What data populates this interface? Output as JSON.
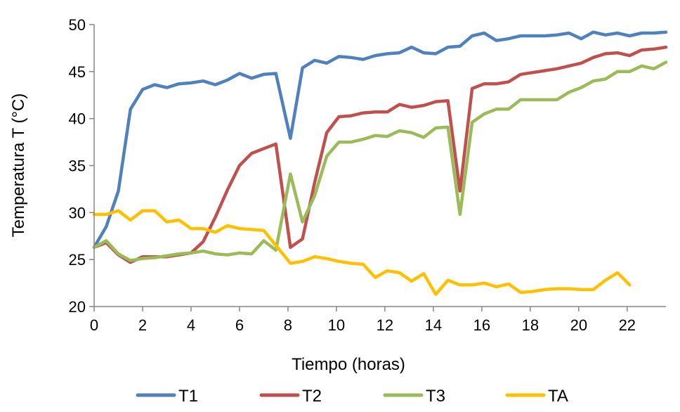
{
  "chart_data": {
    "type": "line",
    "title": "",
    "xlabel": "Tiempo (horas)",
    "ylabel": "Temperatura T (°C)",
    "xlim": [
      0,
      23.6
    ],
    "ylim": [
      20,
      50
    ],
    "xticks": [
      0,
      2,
      4,
      6,
      8,
      10,
      12,
      14,
      16,
      18,
      20,
      22
    ],
    "yticks": [
      20,
      25,
      30,
      35,
      40,
      45,
      50
    ],
    "grid": false,
    "legend_position": "bottom",
    "series": [
      {
        "name": "T1",
        "color": "#4F81BD",
        "x": [
          0,
          0.5,
          1,
          1.5,
          2,
          2.5,
          3,
          3.5,
          4,
          4.5,
          5,
          5.5,
          6,
          6.5,
          7,
          7.5,
          8.1,
          8.6,
          9.1,
          9.6,
          10.1,
          10.6,
          11.1,
          11.6,
          12.1,
          12.6,
          13.1,
          13.6,
          14.1,
          14.6,
          15.1,
          15.6,
          16.1,
          16.6,
          17.1,
          17.6,
          18.1,
          18.6,
          19.1,
          19.6,
          20.1,
          20.6,
          21.1,
          21.6,
          22.1,
          22.6,
          23.1,
          23.6
        ],
        "values": [
          26.3,
          28.5,
          32.3,
          41.0,
          43.1,
          43.6,
          43.3,
          43.7,
          43.8,
          44.0,
          43.6,
          44.1,
          44.8,
          44.3,
          44.7,
          44.8,
          37.9,
          45.4,
          46.2,
          45.9,
          46.6,
          46.5,
          46.3,
          46.7,
          46.9,
          47.0,
          47.6,
          47.0,
          46.9,
          47.6,
          47.7,
          48.8,
          49.1,
          48.3,
          48.5,
          48.8,
          48.8,
          48.8,
          48.9,
          49.1,
          48.5,
          49.2,
          48.9,
          49.1,
          48.8,
          49.1,
          49.1,
          49.2
        ]
      },
      {
        "name": "T2",
        "color": "#C0504D",
        "x": [
          0,
          0.5,
          1,
          1.5,
          2,
          2.5,
          3,
          3.5,
          4,
          4.5,
          5,
          5.5,
          6,
          6.5,
          7,
          7.5,
          8.1,
          8.6,
          9.1,
          9.6,
          10.1,
          10.6,
          11.1,
          11.6,
          12.1,
          12.6,
          13.1,
          13.6,
          14.1,
          14.6,
          15.1,
          15.6,
          16.1,
          16.6,
          17.1,
          17.6,
          18.1,
          18.6,
          19.1,
          19.6,
          20.1,
          20.6,
          21.1,
          21.6,
          22.1,
          22.6,
          23.1,
          23.6
        ],
        "values": [
          26.3,
          26.8,
          25.5,
          24.7,
          25.3,
          25.3,
          25.3,
          25.5,
          25.7,
          26.9,
          29.5,
          32.4,
          35.0,
          36.3,
          36.8,
          37.3,
          26.3,
          27.2,
          33.2,
          38.5,
          40.2,
          40.3,
          40.6,
          40.7,
          40.7,
          41.5,
          41.2,
          41.4,
          41.8,
          41.9,
          32.3,
          43.2,
          43.7,
          43.7,
          43.9,
          44.7,
          44.9,
          45.1,
          45.3,
          45.6,
          45.9,
          46.5,
          46.9,
          47.0,
          46.7,
          47.3,
          47.4,
          47.6
        ]
      },
      {
        "name": "T3",
        "color": "#9BBB59",
        "x": [
          0,
          0.5,
          1,
          1.5,
          2,
          2.5,
          3,
          3.5,
          4,
          4.5,
          5,
          5.5,
          6,
          6.5,
          7,
          7.5,
          8.1,
          8.6,
          9.1,
          9.6,
          10.1,
          10.6,
          11.1,
          11.6,
          12.1,
          12.6,
          13.1,
          13.6,
          14.1,
          14.6,
          15.1,
          15.6,
          16.1,
          16.6,
          17.1,
          17.6,
          18.1,
          18.6,
          19.1,
          19.6,
          20.1,
          20.6,
          21.1,
          21.6,
          22.1,
          22.6,
          23.1,
          23.6
        ],
        "values": [
          26.3,
          27.0,
          25.6,
          24.9,
          25.1,
          25.2,
          25.4,
          25.6,
          25.7,
          25.9,
          25.6,
          25.5,
          25.7,
          25.6,
          27.0,
          26.0,
          34.1,
          29.0,
          31.8,
          36.0,
          37.5,
          37.5,
          37.8,
          38.2,
          38.1,
          38.7,
          38.5,
          38.0,
          39.0,
          39.1,
          29.8,
          39.6,
          40.5,
          41.0,
          41.0,
          42.0,
          42.0,
          42.0,
          42.0,
          42.8,
          43.3,
          44.0,
          44.2,
          45.0,
          45.0,
          45.6,
          45.3,
          46.0
        ]
      },
      {
        "name": "TA",
        "color": "#FFC000",
        "x": [
          0,
          0.5,
          1,
          1.5,
          2,
          2.5,
          3,
          3.5,
          4,
          4.5,
          5,
          5.5,
          6,
          6.5,
          7,
          7.5,
          8.1,
          8.6,
          9.1,
          9.6,
          10.1,
          10.6,
          11.1,
          11.6,
          12.1,
          12.6,
          13.1,
          13.6,
          14.1,
          14.6,
          15.1,
          15.6,
          16.1,
          16.6,
          17.1,
          17.6,
          18.1,
          18.6,
          19.1,
          19.6,
          20.1,
          20.6,
          21.1,
          21.6,
          22.1
        ],
        "values": [
          29.8,
          29.8,
          30.2,
          29.2,
          30.2,
          30.2,
          29.0,
          29.2,
          28.3,
          28.3,
          27.9,
          28.6,
          28.3,
          28.2,
          28.1,
          26.5,
          24.6,
          24.8,
          25.3,
          25.1,
          24.8,
          24.6,
          24.5,
          23.1,
          23.8,
          23.6,
          22.7,
          23.5,
          21.3,
          22.8,
          22.3,
          22.3,
          22.5,
          22.1,
          22.4,
          21.5,
          21.6,
          21.8,
          21.9,
          21.9,
          21.8,
          21.8,
          22.8,
          23.6,
          22.3
        ]
      }
    ]
  }
}
